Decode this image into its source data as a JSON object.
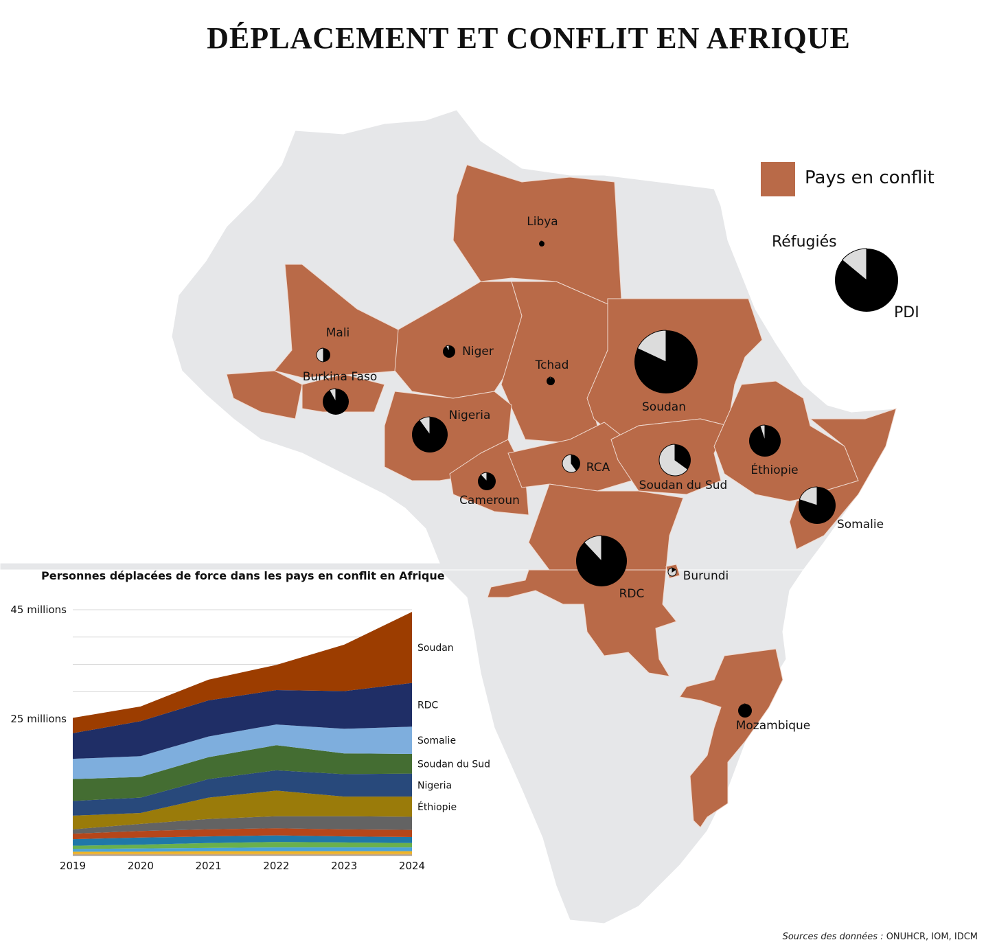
{
  "title": "DÉPLACEMENT ET CONFLIT EN AFRIQUE",
  "colors": {
    "conflict": "#b96a48",
    "land": "#e6e7e9",
    "refugees": "#dcdcdc",
    "pdi": "#000000"
  },
  "legend": {
    "conflict_label": "Pays en conflit",
    "refugees_label": "Réfugiés",
    "pdi_label": "PDI",
    "example_refugee_share": 0.14
  },
  "countries": [
    {
      "name": "Libya",
      "refugee_share": 0.05
    },
    {
      "name": "Mali",
      "refugee_share": 0.5
    },
    {
      "name": "Niger",
      "refugee_share": 0.08
    },
    {
      "name": "Burkina Faso",
      "refugee_share": 0.08
    },
    {
      "name": "Tchad",
      "refugee_share": 0.05
    },
    {
      "name": "Soudan",
      "refugee_share": 0.18
    },
    {
      "name": "Nigeria",
      "refugee_share": 0.1
    },
    {
      "name": "Cameroun",
      "refugee_share": 0.12
    },
    {
      "name": "RCA",
      "refugee_share": 0.6
    },
    {
      "name": "Soudan du Sud",
      "refugee_share": 0.65
    },
    {
      "name": "Éthiopie",
      "refugee_share": 0.05
    },
    {
      "name": "Somalie",
      "refugee_share": 0.2
    },
    {
      "name": "RDC",
      "refugee_share": 0.12
    },
    {
      "name": "Burundi",
      "refugee_share": 0.85
    },
    {
      "name": "Mozambique",
      "refugee_share": 0.02
    }
  ],
  "chart_data": {
    "type": "area",
    "title": "Personnes déplacées de force dans les pays en conflit en Afrique",
    "x": [
      2019,
      2020,
      2021,
      2022,
      2023,
      2024
    ],
    "x_tick_labels": [
      "2019",
      "2020",
      "2021",
      "2022",
      "2023",
      "2024"
    ],
    "y_tick_labels": [
      "45 millions",
      "25 millions"
    ],
    "y_tick_values": [
      45,
      25
    ],
    "ylim": [
      0,
      45
    ],
    "grid": true,
    "series": [
      {
        "name": "",
        "color": "#c9a57a",
        "values": [
          0.3,
          0.3,
          0.3,
          0.3,
          0.3,
          0.3
        ]
      },
      {
        "name": "",
        "color": "#f0b323",
        "values": [
          0.4,
          0.4,
          0.5,
          0.5,
          0.5,
          0.5
        ]
      },
      {
        "name": "",
        "color": "#4aa3d8",
        "values": [
          0.5,
          0.6,
          0.6,
          0.7,
          0.7,
          0.7
        ]
      },
      {
        "name": "",
        "color": "#6ab04c",
        "values": [
          0.6,
          0.7,
          0.9,
          1.0,
          0.9,
          0.8
        ]
      },
      {
        "name": "",
        "color": "#1f78a8",
        "values": [
          1.2,
          1.3,
          1.2,
          1.2,
          1.1,
          1.1
        ]
      },
      {
        "name": "",
        "color": "#b5461a",
        "values": [
          1.0,
          1.2,
          1.3,
          1.3,
          1.3,
          1.3
        ]
      },
      {
        "name": "",
        "color": "#636363",
        "values": [
          0.8,
          1.3,
          1.9,
          2.2,
          2.4,
          2.4
        ]
      },
      {
        "name": "Éthiopie",
        "color": "#9a7b0a",
        "values": [
          2.5,
          2.0,
          3.9,
          4.7,
          3.6,
          3.7
        ]
      },
      {
        "name": "Nigeria",
        "color": "#28497b",
        "values": [
          2.7,
          2.8,
          3.4,
          3.7,
          4.1,
          4.2
        ]
      },
      {
        "name": "Soudan du Sud",
        "color": "#446d32",
        "values": [
          4.0,
          3.8,
          4.0,
          4.6,
          3.8,
          3.6
        ]
      },
      {
        "name": "Somalie",
        "color": "#7eaedd",
        "values": [
          3.7,
          3.8,
          3.8,
          3.8,
          4.5,
          5.0
        ]
      },
      {
        "name": "RDC",
        "color": "#1f2e66",
        "values": [
          4.7,
          6.4,
          6.6,
          6.3,
          6.9,
          8.0
        ]
      },
      {
        "name": "Soudan",
        "color": "#9c3d00",
        "values": [
          2.8,
          2.7,
          3.8,
          4.6,
          8.5,
          13.0
        ]
      }
    ]
  },
  "source": {
    "label": "Sources des données :",
    "value": "ONUHCR, IOM, IDCM"
  }
}
